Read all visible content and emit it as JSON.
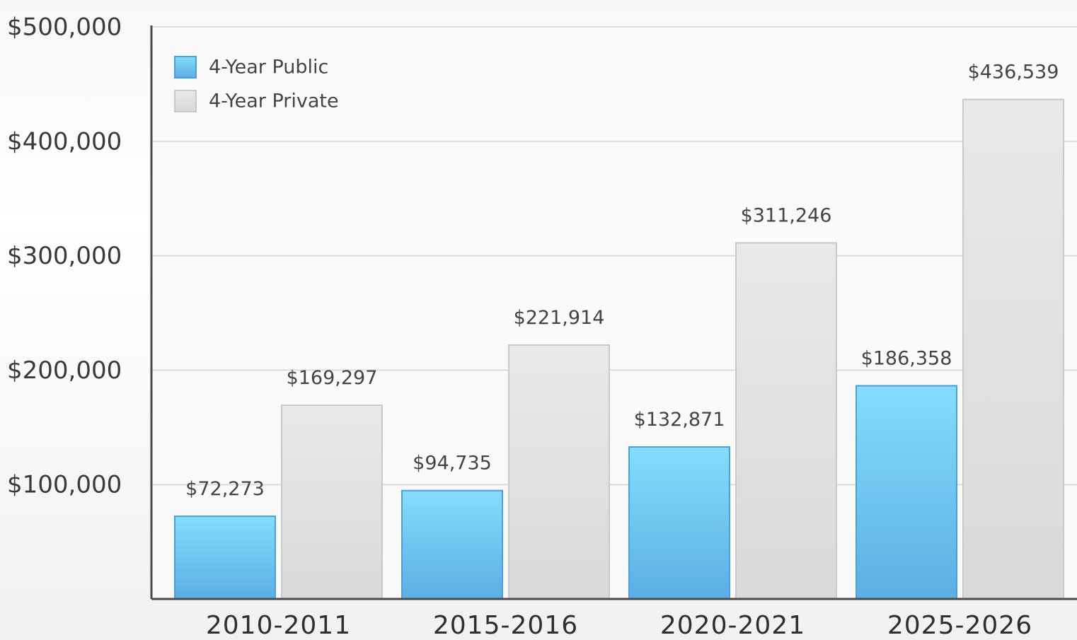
{
  "chart_data": {
    "type": "bar",
    "categories": [
      "2010-2011",
      "2015-2016",
      "2020-2021",
      "2025-2026"
    ],
    "series": [
      {
        "name": "4-Year Public",
        "values": [
          72273,
          94735,
          132871,
          186358
        ],
        "labels": [
          "$72,273",
          "$94,735",
          "$132,871",
          "$186,358"
        ],
        "color": "#6cc2ee"
      },
      {
        "name": "4-Year Private",
        "values": [
          169297,
          221914,
          311246,
          436539
        ],
        "labels": [
          "$169,297",
          "$221,914",
          "$311,246",
          "$436,539"
        ],
        "color": "#e0e0e0"
      }
    ],
    "y_ticks": [
      100000,
      200000,
      300000,
      400000,
      500000
    ],
    "y_tick_labels": [
      "$100,000",
      "$200,000",
      "$300,000",
      "$400,000",
      "$500,000"
    ],
    "ylim": [
      0,
      500000
    ],
    "grid": true,
    "legend_position": "top-left",
    "title": "",
    "xlabel": "",
    "ylabel": ""
  }
}
